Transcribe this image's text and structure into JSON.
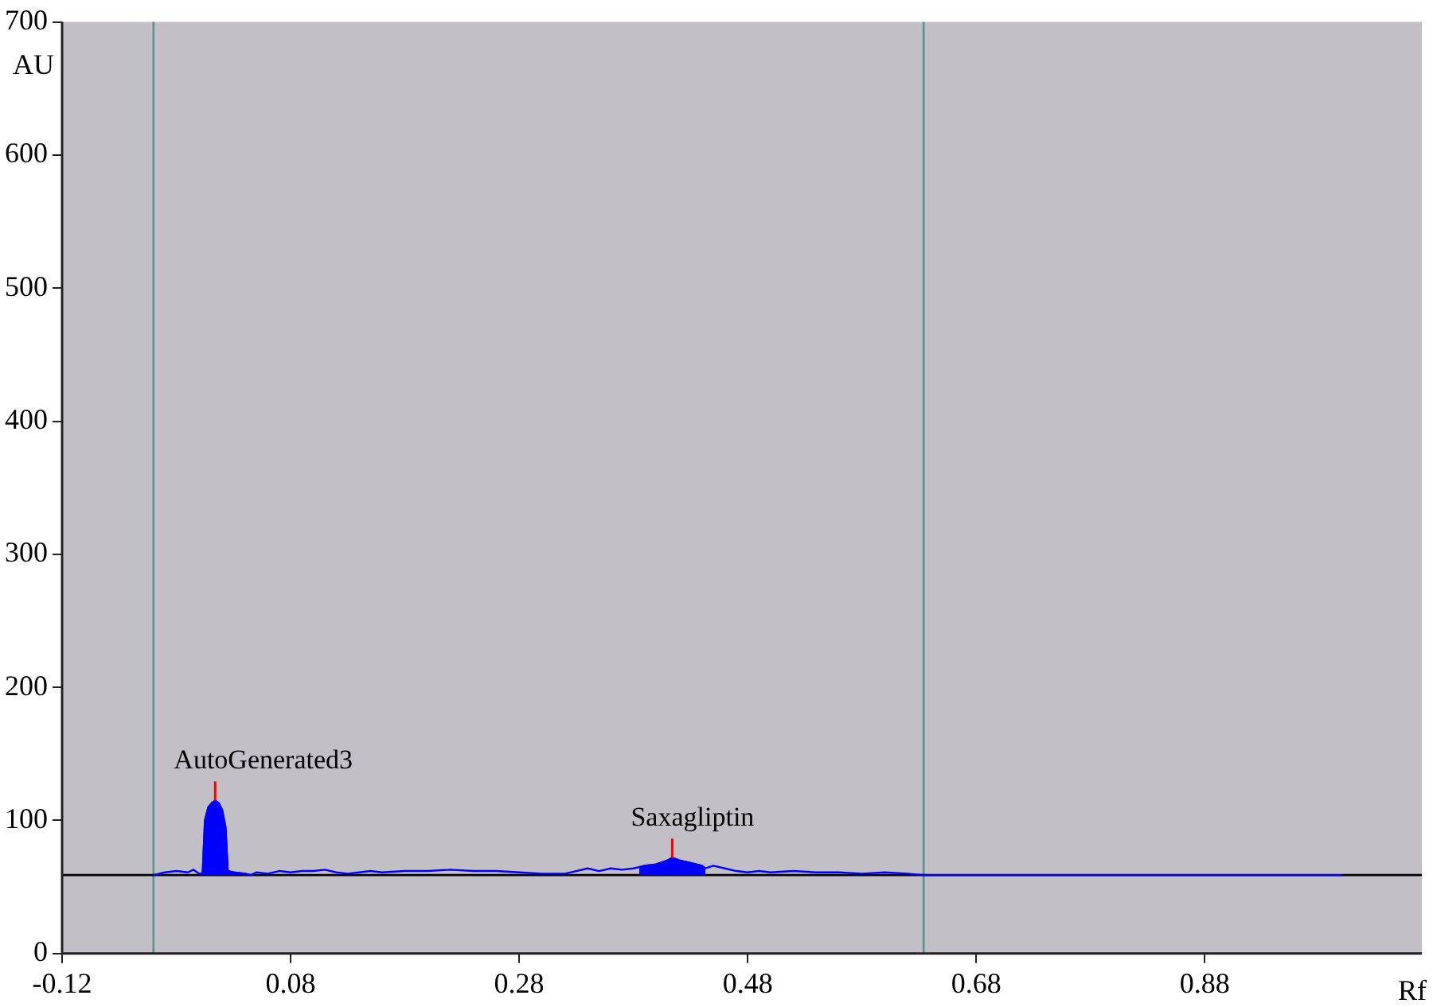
{
  "chart_data": {
    "type": "line",
    "xlabel": "Rf",
    "ylabel": "AU",
    "xlim": [
      -0.12,
      1.07
    ],
    "xticks": [
      -0.12,
      0.08,
      0.28,
      0.48,
      0.68,
      0.88
    ],
    "ylim": [
      0,
      700
    ],
    "yticks": [
      0,
      100,
      200,
      300,
      400,
      500,
      600,
      700
    ],
    "grid": false,
    "legend": false,
    "marker": "none",
    "line_style": "solid",
    "series": [
      {
        "color": "#0000ff",
        "x": [
          -0.04,
          -0.03,
          -0.02,
          -0.01,
          -0.005,
          0.0,
          0.003,
          0.005,
          0.008,
          0.011,
          0.014,
          0.017,
          0.02,
          0.023,
          0.025,
          0.03,
          0.04,
          0.045,
          0.05,
          0.06,
          0.07,
          0.08,
          0.09,
          0.1,
          0.11,
          0.12,
          0.13,
          0.14,
          0.15,
          0.16,
          0.18,
          0.2,
          0.22,
          0.24,
          0.26,
          0.28,
          0.3,
          0.32,
          0.33,
          0.34,
          0.35,
          0.36,
          0.37,
          0.38,
          0.385,
          0.39,
          0.4,
          0.41,
          0.414,
          0.42,
          0.43,
          0.44,
          0.443,
          0.45,
          0.46,
          0.47,
          0.48,
          0.49,
          0.5,
          0.52,
          0.54,
          0.56,
          0.58,
          0.6,
          0.62,
          0.634,
          0.7,
          0.8,
          0.9,
          1.0
        ],
        "values": [
          59,
          61,
          62,
          61,
          63,
          60,
          60,
          100,
          110,
          113,
          115,
          113,
          108,
          95,
          62,
          61,
          60,
          59,
          61,
          60,
          62,
          61,
          62,
          62,
          63,
          61,
          60,
          61,
          62,
          61,
          62,
          62,
          63,
          62,
          62,
          61,
          60,
          60,
          62,
          64,
          62,
          64,
          63,
          64,
          65,
          66,
          67,
          70,
          72,
          70,
          68,
          66,
          64,
          66,
          64,
          62,
          61,
          62,
          61,
          62,
          61,
          61,
          60,
          61,
          60,
          59,
          59,
          59,
          59,
          59
        ]
      },
      {
        "type": "area",
        "color": "#0000ff",
        "x": [
          0.0,
          0.003,
          0.005,
          0.008,
          0.011,
          0.014,
          0.017,
          0.02,
          0.023,
          0.025,
          0.03,
          0.04,
          0.045
        ],
        "values": [
          60,
          60,
          100,
          110,
          113,
          115,
          113,
          108,
          95,
          62,
          61,
          60,
          59
        ]
      },
      {
        "type": "area",
        "color": "#0000ff",
        "x": [
          0.385,
          0.39,
          0.4,
          0.41,
          0.414,
          0.42,
          0.43,
          0.44,
          0.443
        ],
        "values": [
          65,
          66,
          67,
          70,
          72,
          70,
          68,
          66,
          64
        ]
      }
    ],
    "ref_lines": [
      {
        "axis": "x",
        "value": -0.04,
        "color": "#5b9090"
      },
      {
        "axis": "x",
        "value": 0.634,
        "color": "#5b9090"
      },
      {
        "axis": "y",
        "value": 59,
        "color": "#000000"
      }
    ],
    "annotations": [
      {
        "text": "AutoGenerated3",
        "x": 0.014,
        "y": 115
      },
      {
        "text": "Saxagliptin",
        "x": 0.414,
        "y": 72
      }
    ]
  }
}
